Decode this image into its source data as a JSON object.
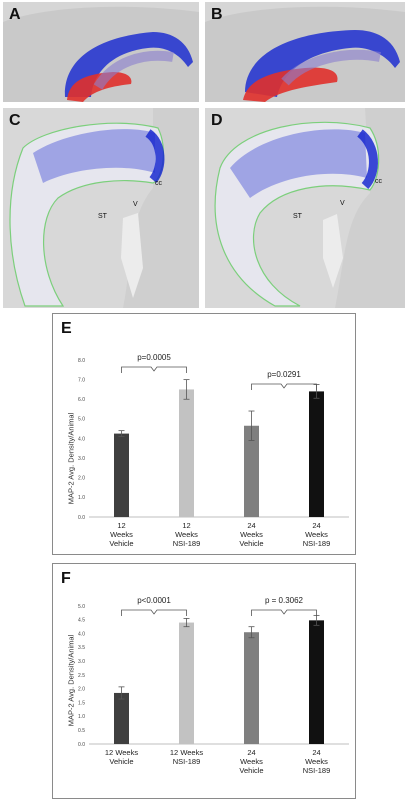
{
  "panels": {
    "A": {
      "label": "A"
    },
    "B": {
      "label": "B"
    },
    "C": {
      "label": "C",
      "annotations": {
        "cc": "cc",
        "st": "ST",
        "v": "V"
      }
    },
    "D": {
      "label": "D",
      "annotations": {
        "cc": "cc",
        "st": "ST",
        "v": "V"
      }
    }
  },
  "chart_data": [
    {
      "label": "E",
      "type": "bar",
      "ylabel": "MAP-2 Avg. Density/Animal",
      "ylim": [
        0,
        8
      ],
      "yticks": [
        "0.0",
        "1.0",
        "2.0",
        "3.0",
        "4.0",
        "5.0",
        "6.0",
        "7.0",
        "8.0"
      ],
      "categories": [
        [
          "12",
          "Weeks",
          "Vehicle"
        ],
        [
          "12",
          "Weeks",
          "NSI-189"
        ],
        [
          "24",
          "Weeks",
          "Vehicle"
        ],
        [
          "24",
          "Weeks",
          "NSI-189"
        ]
      ],
      "values": [
        4.25,
        6.5,
        4.65,
        6.4
      ],
      "errors": [
        0.15,
        0.5,
        0.75,
        0.35
      ],
      "colors": [
        "#3f3f3f",
        "#c2c2c2",
        "#7f7f7f",
        "#111111"
      ],
      "comparisons": [
        {
          "text": "p=0.0005",
          "pair": [
            0,
            1
          ]
        },
        {
          "text": "p=0.0291",
          "pair": [
            2,
            3
          ]
        }
      ]
    },
    {
      "label": "F",
      "type": "bar",
      "ylabel": "MAP-2 Avg. Density/Animal",
      "ylim": [
        0,
        5
      ],
      "yticks": [
        "0.0",
        "0.5",
        "1.0",
        "1.5",
        "2.0",
        "2.5",
        "3.0",
        "3.5",
        "4.0",
        "4.5",
        "5.0"
      ],
      "categories": [
        [
          "12 Weeks",
          "Vehicle"
        ],
        [
          "12 Weeks",
          "NSI-189"
        ],
        [
          "24",
          "Weeks",
          "Vehicle"
        ],
        [
          "24",
          "Weeks",
          "NSI-189"
        ]
      ],
      "values": [
        1.85,
        4.4,
        4.05,
        4.48
      ],
      "errors": [
        0.22,
        0.15,
        0.2,
        0.18
      ],
      "colors": [
        "#3f3f3f",
        "#c2c2c2",
        "#7f7f7f",
        "#111111"
      ],
      "comparisons": [
        {
          "text": "p<0.0001",
          "pair": [
            0,
            1
          ]
        },
        {
          "text": "p = 0.3062",
          "pair": [
            2,
            3
          ]
        }
      ]
    }
  ]
}
